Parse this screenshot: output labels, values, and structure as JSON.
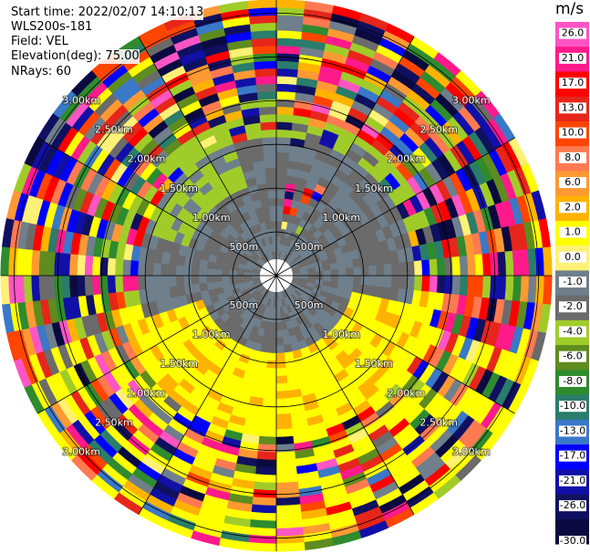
{
  "header": {
    "start_time": "Start time: 2022/02/07 14:10:13",
    "station": "WLS200s-181",
    "field": "Field: VEL",
    "elevation": "Elevation(deg): 75.00",
    "nrays": "NRays: 60"
  },
  "chart_data": {
    "type": "heatmap",
    "projection": "polar-ppi",
    "field": "VEL",
    "unit": "m/s",
    "n_rays": 60,
    "ring_labels": [
      "500m",
      "1.00km",
      "1.50km",
      "2.00km",
      "2.50km",
      "3.00km"
    ],
    "ring_ranges_km": [
      0.5,
      1.0,
      1.5,
      2.0,
      2.5,
      3.0
    ],
    "colorbar": {
      "ticks": [
        "26.0",
        "21.0",
        "17.0",
        "13.0",
        "10.0",
        "8.0",
        "6.0",
        "2.0",
        "1.0",
        "0.0",
        "-1.0",
        "-2.0",
        "-4.0",
        "-6.0",
        "-8.0",
        "-10.0",
        "-13.0",
        "-17.0",
        "-21.0",
        "-26.0",
        "-30.0"
      ],
      "colors": [
        "#ff55c4",
        "#ff1a8c",
        "#ff0000",
        "#e6261a",
        "#ff4500",
        "#ff7a50",
        "#ff9933",
        "#ffb300",
        "#ffff00",
        "#fff176",
        "#6f7f8c",
        "#6b6b6b",
        "#a0cc2a",
        "#5e8c1e",
        "#2e8b2e",
        "#2a7d6a",
        "#3a78c8",
        "#0000ff",
        "#1010a8",
        "#101060",
        "#0a0a40"
      ]
    },
    "grid": true
  }
}
